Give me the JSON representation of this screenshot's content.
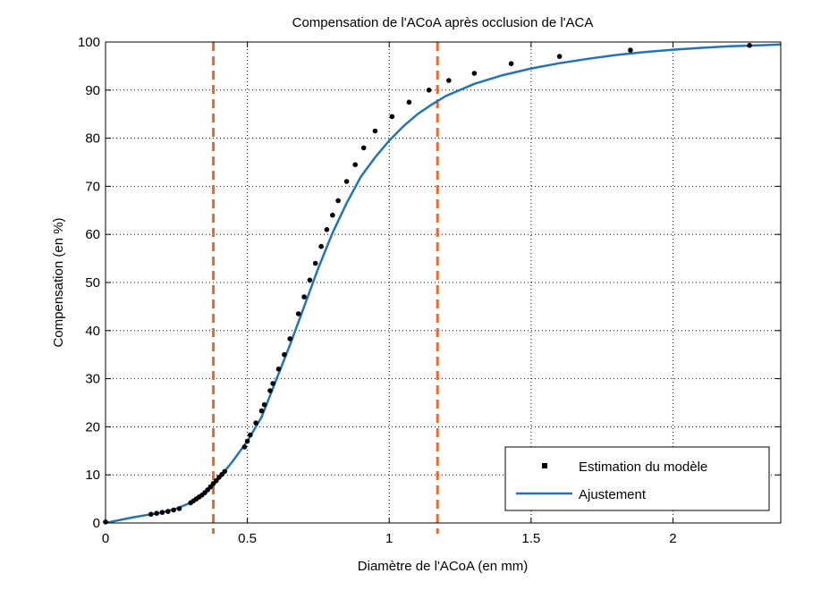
{
  "chart_data": {
    "type": "line",
    "title": "Compensation de l'ACoA après occlusion de l'ACA",
    "xlabel": "Diamètre de l'ACoA (en mm)",
    "ylabel": "Compensation (en %)",
    "xlim": [
      0,
      2.38
    ],
    "ylim": [
      0,
      100
    ],
    "xticks": [
      0,
      0.5,
      1,
      1.5,
      2
    ],
    "xtick_labels": [
      "0",
      "0.5",
      "1",
      "1.5",
      "2"
    ],
    "yticks": [
      0,
      10,
      20,
      30,
      40,
      50,
      60,
      70,
      80,
      90,
      100
    ],
    "ytick_labels": [
      "0",
      "10",
      "20",
      "30",
      "40",
      "50",
      "60",
      "70",
      "80",
      "90",
      "100"
    ],
    "grid": true,
    "legend_position": "bottom-right",
    "colors": {
      "fit": "#2472b8",
      "points": "#000000",
      "vlines": "#f26522"
    },
    "series": [
      {
        "name": "Estimation du modèle",
        "kind": "scatter",
        "x": [
          0,
          0.16,
          0.18,
          0.2,
          0.22,
          0.24,
          0.26,
          0.3,
          0.31,
          0.32,
          0.33,
          0.34,
          0.35,
          0.36,
          0.37,
          0.38,
          0.39,
          0.4,
          0.41,
          0.42,
          0.49,
          0.5,
          0.51,
          0.53,
          0.55,
          0.56,
          0.58,
          0.59,
          0.61,
          0.63,
          0.65,
          0.68,
          0.7,
          0.72,
          0.74,
          0.76,
          0.78,
          0.8,
          0.82,
          0.85,
          0.88,
          0.91,
          0.95,
          1.01,
          1.07,
          1.14,
          1.21,
          1.3,
          1.43,
          1.6,
          1.85,
          2.27
        ],
        "y": [
          0.2,
          1.8,
          2.0,
          2.2,
          2.4,
          2.7,
          3.0,
          4.2,
          4.6,
          5.0,
          5.4,
          5.8,
          6.3,
          6.9,
          7.5,
          8.2,
          8.8,
          9.5,
          10.1,
          10.7,
          15.8,
          17.0,
          18.3,
          20.8,
          23.3,
          24.6,
          27.5,
          29.0,
          32.0,
          35.0,
          38.3,
          43.5,
          47.0,
          50.5,
          54.0,
          57.5,
          61.0,
          64.0,
          67.0,
          71.0,
          74.5,
          78.0,
          81.5,
          84.5,
          87.5,
          90.0,
          92.0,
          93.5,
          95.5,
          97.0,
          98.3,
          99.3
        ]
      },
      {
        "name": "Ajustement",
        "kind": "line",
        "x": [
          0,
          0.1,
          0.2,
          0.25,
          0.3,
          0.35,
          0.38,
          0.41,
          0.45,
          0.5,
          0.55,
          0.6,
          0.65,
          0.7,
          0.75,
          0.8,
          0.85,
          0.9,
          0.95,
          1.0,
          1.05,
          1.1,
          1.15,
          1.2,
          1.3,
          1.4,
          1.5,
          1.6,
          1.7,
          1.8,
          1.9,
          2.0,
          2.1,
          2.2,
          2.3,
          2.38
        ],
        "y": [
          0,
          1.2,
          2.2,
          3.0,
          4.2,
          6.3,
          7.8,
          10.0,
          13.0,
          17.0,
          22.0,
          29.5,
          37.0,
          45.0,
          53.0,
          60.3,
          66.5,
          72.0,
          76.0,
          79.5,
          82.5,
          85.0,
          87.0,
          88.8,
          91.3,
          93.1,
          94.5,
          95.6,
          96.5,
          97.3,
          97.9,
          98.4,
          98.8,
          99.1,
          99.3,
          99.5
        ]
      }
    ],
    "vertical_lines": [
      0.38,
      1.17
    ],
    "legend_entries": [
      "Estimation du modèle",
      "Ajustement"
    ]
  }
}
